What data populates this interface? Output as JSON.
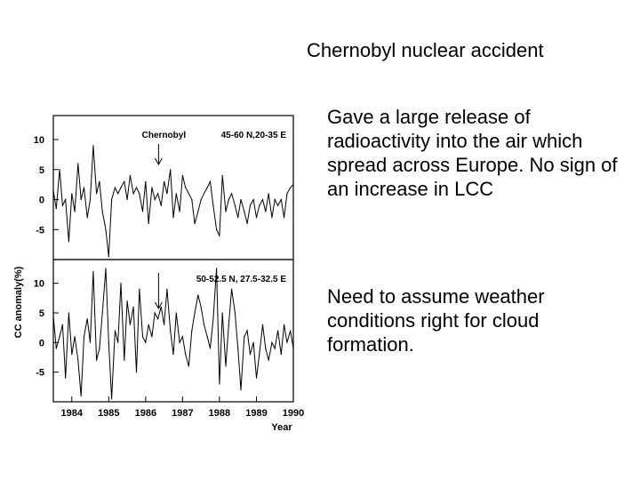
{
  "slide": {
    "title": "Chernobyl nuclear accident",
    "bullets": [
      "Gave a large release of radioactivity into the air which spread across Europe. No sign of an increase in LCC",
      "Need to assume weather conditions right for cloud formation."
    ]
  },
  "chart_data": {
    "type": "line",
    "xlabel": "Year",
    "ylabel": "CC anomaly(%)",
    "x_range": [
      1983.5,
      1990
    ],
    "x_ticks": [
      "1984",
      "1985",
      "1986",
      "1987",
      "1988",
      "1989",
      "1990"
    ],
    "grid": false,
    "panels": [
      {
        "label": "45-60 N,20-35 E",
        "annotation": "Chernobyl",
        "annotation_x": 1986.35,
        "ylim": [
          -10,
          14
        ],
        "y_ticks": [
          "10",
          "5",
          "0",
          "-5"
        ],
        "series": [
          {
            "x": [
              1983.5,
              1983.58,
              1983.67,
              1983.75,
              1983.83,
              1983.92,
              1984.0,
              1984.08,
              1984.17,
              1984.25,
              1984.33,
              1984.42,
              1984.5,
              1984.58,
              1984.67,
              1984.75,
              1984.83,
              1984.92,
              1985.0,
              1985.08,
              1985.17,
              1985.25,
              1985.33,
              1985.42,
              1985.5,
              1985.58,
              1985.67,
              1985.75,
              1985.83,
              1985.92,
              1986.0,
              1986.08,
              1986.17,
              1986.25,
              1986.33,
              1986.42,
              1986.5,
              1986.58,
              1986.67,
              1986.75,
              1986.83,
              1986.92,
              1987.0,
              1987.08,
              1987.17,
              1987.25,
              1987.33,
              1987.42,
              1987.5,
              1987.58,
              1987.67,
              1987.75,
              1987.83,
              1987.92,
              1988.0,
              1988.08,
              1988.17,
              1988.25,
              1988.33,
              1988.42,
              1988.5,
              1988.58,
              1988.67,
              1988.75,
              1988.83,
              1988.92,
              1989.0,
              1989.08,
              1989.17,
              1989.25,
              1989.33,
              1989.42,
              1989.5,
              1989.58,
              1989.67,
              1989.75,
              1989.83,
              1989.92,
              1990.0
            ],
            "y": [
              1.5,
              -1.5,
              5,
              -1,
              0,
              -7,
              1,
              -2,
              6,
              0,
              2,
              -3,
              0,
              9,
              1,
              3,
              -2,
              -5,
              -9.5,
              0,
              2,
              1,
              2,
              3,
              0,
              4,
              1,
              2,
              1,
              -2,
              3,
              -4,
              2,
              0,
              1,
              -1,
              3,
              1,
              5,
              -3,
              1,
              -2,
              4,
              2,
              1,
              0,
              -4,
              -2,
              0,
              1,
              2,
              3,
              -1,
              -5,
              -6,
              4,
              -2,
              0,
              1,
              -1,
              -3,
              0,
              -2,
              -4,
              -1,
              0,
              -3,
              -1,
              0,
              -2,
              1,
              -3,
              0,
              -1,
              0,
              -3,
              1,
              2,
              2.5
            ]
          }
        ]
      },
      {
        "label": "50-52.5 N, 27.5-32.5 E",
        "annotation": "",
        "annotation_x": 1986.35,
        "ylim": [
          -10,
          14
        ],
        "y_ticks": [
          "10",
          "5",
          "0",
          "-5"
        ],
        "series": [
          {
            "x": [
              1983.5,
              1983.58,
              1983.67,
              1983.75,
              1983.83,
              1983.92,
              1984.0,
              1984.08,
              1984.17,
              1984.25,
              1984.33,
              1984.42,
              1984.5,
              1984.58,
              1984.67,
              1984.75,
              1984.83,
              1984.92,
              1985.0,
              1985.08,
              1985.17,
              1985.25,
              1985.33,
              1985.42,
              1985.5,
              1985.58,
              1985.67,
              1985.75,
              1985.83,
              1985.92,
              1986.0,
              1986.08,
              1986.17,
              1986.25,
              1986.33,
              1986.42,
              1986.5,
              1986.58,
              1986.67,
              1986.75,
              1986.83,
              1986.92,
              1987.0,
              1987.08,
              1987.17,
              1987.25,
              1987.33,
              1987.42,
              1987.5,
              1987.58,
              1987.67,
              1987.75,
              1987.83,
              1987.92,
              1988.0,
              1988.08,
              1988.17,
              1988.25,
              1988.33,
              1988.42,
              1988.5,
              1988.58,
              1988.67,
              1988.75,
              1988.83,
              1988.92,
              1989.0,
              1989.08,
              1989.17,
              1989.25,
              1989.33,
              1989.42,
              1989.5,
              1989.58,
              1989.67,
              1989.75,
              1989.83,
              1989.92,
              1990.0
            ],
            "y": [
              4.5,
              -1,
              1,
              3,
              -6,
              5,
              -2,
              1,
              -3,
              -9,
              1,
              4,
              0,
              12,
              -3,
              -1,
              5,
              12.5,
              0,
              -9.5,
              2,
              0,
              10,
              -3,
              7,
              3,
              6,
              -5,
              9,
              1,
              0,
              3,
              1,
              5,
              4,
              6,
              3,
              9,
              2,
              -2,
              5,
              0,
              1,
              -2,
              -4,
              2,
              5,
              8,
              6,
              3,
              1,
              -1,
              4,
              12.5,
              -7,
              5,
              -4,
              3,
              9,
              5,
              -1,
              -8,
              1,
              2,
              -2,
              0,
              -6,
              -2,
              3,
              -1,
              -3,
              0,
              -1,
              2,
              -2,
              3,
              0,
              2,
              -1
            ]
          }
        ]
      }
    ]
  }
}
